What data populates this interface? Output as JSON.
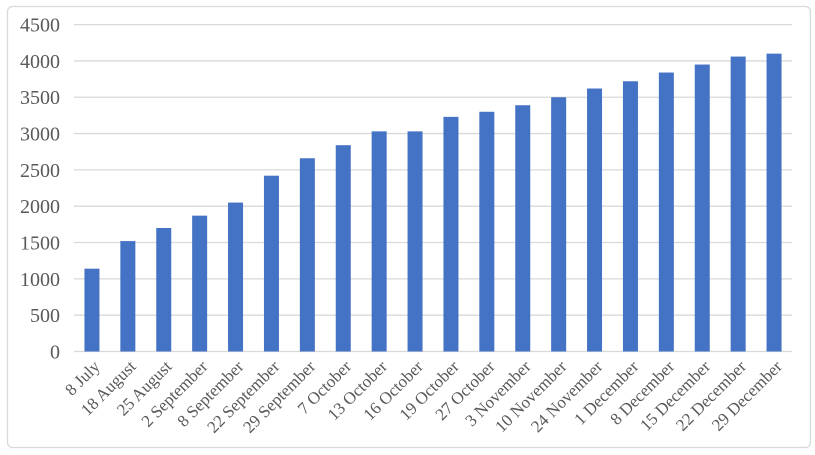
{
  "chart_data": {
    "type": "bar",
    "title": "",
    "xlabel": "",
    "ylabel": "",
    "categories": [
      "8 July",
      "18 August",
      "25 August",
      "2 September",
      "8 September",
      "22 September",
      "29 September",
      "7 October",
      "13 October",
      "16 October",
      "19 October",
      "27 October",
      "3 November",
      "10 November",
      "24 November",
      "1 December",
      "8 December",
      "15 December",
      "22 December",
      "29 December"
    ],
    "values": [
      1140,
      1520,
      1700,
      1870,
      2050,
      2420,
      2660,
      2840,
      3030,
      3030,
      3230,
      3300,
      3390,
      3500,
      3620,
      3720,
      3840,
      3950,
      4060,
      4100
    ],
    "ylim": [
      0,
      4500
    ],
    "yticks": [
      0,
      500,
      1000,
      1500,
      2000,
      2500,
      3000,
      3500,
      4000,
      4500
    ],
    "grid": true,
    "legend_position": "none",
    "colors": {
      "bar": "#4472C4",
      "gridline": "#D9D9D9",
      "axis_line": "#D9D9D9",
      "chart_border": "#D9D9D9",
      "tick_label": "#595959",
      "background": "#FFFFFF"
    }
  }
}
